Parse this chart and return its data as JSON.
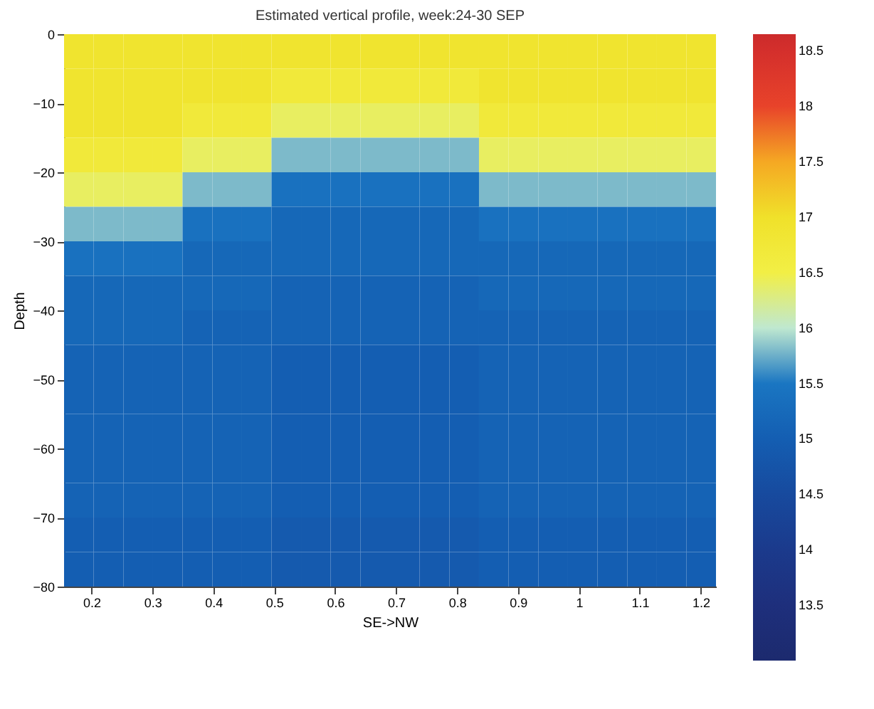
{
  "chart_data": {
    "type": "heatmap",
    "title": "Estimated vertical profile, week:24-30 SEP",
    "xlabel": "SE->NW",
    "ylabel": "Depth",
    "x": [
      0.179,
      0.228,
      0.277,
      0.325,
      0.374,
      0.423,
      0.471,
      0.52,
      0.568,
      0.617,
      0.666,
      0.714,
      0.763,
      0.812,
      0.86,
      0.909,
      0.958,
      1.006,
      1.055,
      1.104,
      1.152,
      1.201
    ],
    "y": [
      -2.5,
      -7.5,
      -12.5,
      -17.5,
      -22.5,
      -27.5,
      -32.5,
      -37.5,
      -42.5,
      -47.5,
      -52.5,
      -57.5,
      -62.5,
      -67.5,
      -72.5,
      -77.5
    ],
    "xlim": [
      0.155,
      1.225
    ],
    "xticks": [
      0.2,
      0.3,
      0.4,
      0.5,
      0.6,
      0.7,
      0.8,
      0.9,
      1,
      1.1,
      1.2
    ],
    "ylim": [
      -80,
      0
    ],
    "yticks": [
      0,
      -10,
      -20,
      -30,
      -40,
      -50,
      -60,
      -70,
      -80
    ],
    "clim": [
      13.0,
      18.65
    ],
    "cticks": [
      13.5,
      14,
      14.5,
      15,
      15.5,
      16,
      16.5,
      17,
      17.5,
      18,
      18.5
    ],
    "cells": [
      [
        16.9,
        16.9,
        16.9,
        16.9,
        16.9,
        16.9,
        16.9,
        16.9,
        16.9,
        16.9,
        16.9,
        16.9,
        16.9,
        16.9,
        16.9,
        16.9,
        16.9,
        16.9,
        16.9,
        16.9,
        16.9,
        16.9
      ],
      [
        16.9,
        16.9,
        16.9,
        16.9,
        16.9,
        16.9,
        16.9,
        16.7,
        16.7,
        16.7,
        16.7,
        16.7,
        16.7,
        16.7,
        16.9,
        16.9,
        16.9,
        16.9,
        16.9,
        16.9,
        16.9,
        16.9
      ],
      [
        16.9,
        16.9,
        16.9,
        16.9,
        16.7,
        16.7,
        16.7,
        16.4,
        16.4,
        16.4,
        16.4,
        16.4,
        16.4,
        16.4,
        16.7,
        16.7,
        16.7,
        16.7,
        16.7,
        16.7,
        16.7,
        16.7
      ],
      [
        16.7,
        16.7,
        16.7,
        16.7,
        16.4,
        16.4,
        16.4,
        15.8,
        15.8,
        15.8,
        15.8,
        15.8,
        15.8,
        15.8,
        16.4,
        16.4,
        16.4,
        16.4,
        16.4,
        16.4,
        16.4,
        16.4
      ],
      [
        16.4,
        16.4,
        16.4,
        16.4,
        15.8,
        15.8,
        15.8,
        15.4,
        15.4,
        15.4,
        15.4,
        15.4,
        15.4,
        15.4,
        15.8,
        15.8,
        15.8,
        15.8,
        15.8,
        15.8,
        15.8,
        15.8
      ],
      [
        15.8,
        15.8,
        15.8,
        15.8,
        15.4,
        15.4,
        15.4,
        15.2,
        15.2,
        15.2,
        15.2,
        15.2,
        15.2,
        15.2,
        15.4,
        15.4,
        15.4,
        15.4,
        15.4,
        15.4,
        15.4,
        15.4
      ],
      [
        15.4,
        15.4,
        15.4,
        15.4,
        15.2,
        15.2,
        15.2,
        15.2,
        15.2,
        15.2,
        15.2,
        15.2,
        15.2,
        15.2,
        15.2,
        15.2,
        15.2,
        15.2,
        15.2,
        15.2,
        15.2,
        15.2
      ],
      [
        15.2,
        15.2,
        15.2,
        15.2,
        15.2,
        15.2,
        15.2,
        15.1,
        15.1,
        15.1,
        15.1,
        15.1,
        15.1,
        15.1,
        15.2,
        15.2,
        15.2,
        15.2,
        15.2,
        15.2,
        15.2,
        15.2
      ],
      [
        15.2,
        15.2,
        15.2,
        15.2,
        15.1,
        15.1,
        15.1,
        15.1,
        15.1,
        15.1,
        15.1,
        15.1,
        15.1,
        15.1,
        15.1,
        15.1,
        15.1,
        15.1,
        15.1,
        15.1,
        15.1,
        15.1
      ],
      [
        15.1,
        15.1,
        15.1,
        15.1,
        15.1,
        15.1,
        15.1,
        15.0,
        15.0,
        15.0,
        15.0,
        15.0,
        15.0,
        15.0,
        15.1,
        15.1,
        15.1,
        15.1,
        15.1,
        15.1,
        15.1,
        15.1
      ],
      [
        15.1,
        15.1,
        15.1,
        15.1,
        15.1,
        15.1,
        15.1,
        15.0,
        15.0,
        15.0,
        15.0,
        15.0,
        15.0,
        15.0,
        15.1,
        15.1,
        15.1,
        15.1,
        15.1,
        15.1,
        15.1,
        15.1
      ],
      [
        15.1,
        15.1,
        15.1,
        15.1,
        15.1,
        15.1,
        15.1,
        15.0,
        15.0,
        15.0,
        15.0,
        15.0,
        15.0,
        15.0,
        15.1,
        15.1,
        15.1,
        15.1,
        15.1,
        15.1,
        15.1,
        15.1
      ],
      [
        15.1,
        15.1,
        15.1,
        15.1,
        15.1,
        15.1,
        15.1,
        15.0,
        15.0,
        15.0,
        15.0,
        15.0,
        15.0,
        15.0,
        15.1,
        15.1,
        15.1,
        15.1,
        15.1,
        15.1,
        15.1,
        15.1
      ],
      [
        15.1,
        15.1,
        15.1,
        15.1,
        15.1,
        15.1,
        15.1,
        15.0,
        15.0,
        15.0,
        15.0,
        15.0,
        15.0,
        15.0,
        15.1,
        15.1,
        15.1,
        15.1,
        15.1,
        15.1,
        15.1,
        15.1
      ],
      [
        15.0,
        15.0,
        15.0,
        15.0,
        15.0,
        15.0,
        15.0,
        14.9,
        14.9,
        14.9,
        14.9,
        14.9,
        14.9,
        14.9,
        15.0,
        15.0,
        15.0,
        15.0,
        15.0,
        15.0,
        15.0,
        15.0
      ],
      [
        15.0,
        15.0,
        15.0,
        15.0,
        15.0,
        15.0,
        15.0,
        14.9,
        14.9,
        14.9,
        14.9,
        14.9,
        14.9,
        14.9,
        15.0,
        15.0,
        15.0,
        15.0,
        15.0,
        15.0,
        15.0,
        15.0
      ]
    ]
  }
}
